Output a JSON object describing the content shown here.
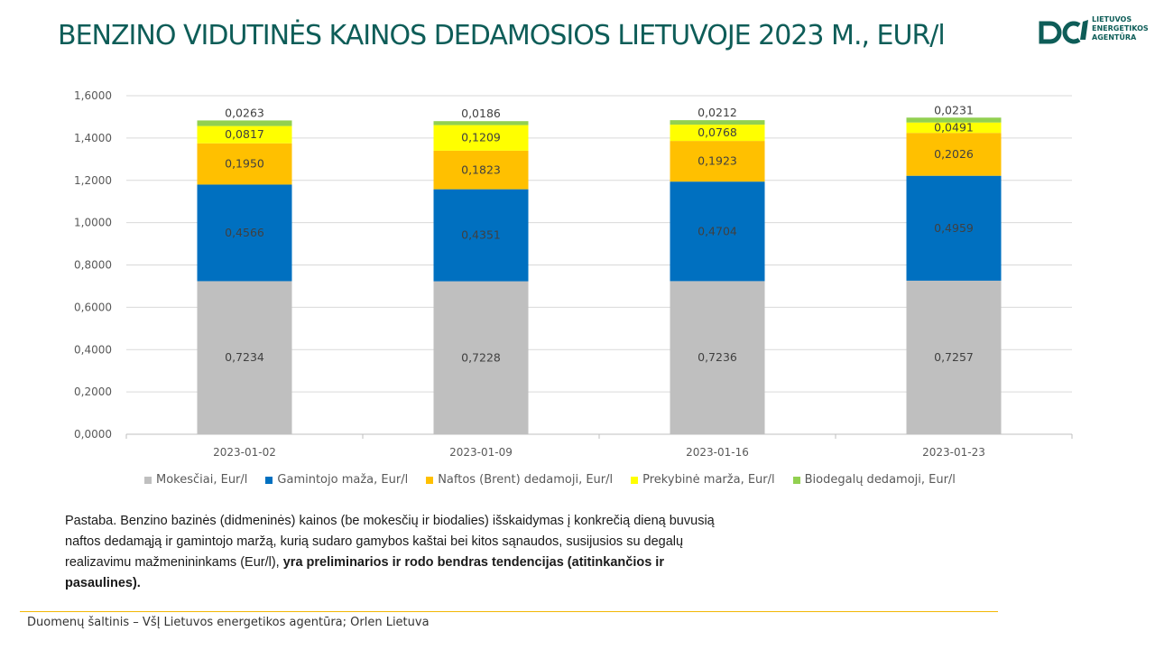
{
  "title": "BENZINO VIDUTINĖS KAINOS DEDAMOSIOS LIETUVOJE 2023 M., EUR/l",
  "logo": {
    "lines": [
      "LIETUVOS",
      "ENERGETIKOS",
      "AGENTŪRA"
    ],
    "color": "#0e5d58"
  },
  "chart_data": {
    "type": "bar",
    "stacked": true,
    "categories": [
      "2023-01-02",
      "2023-01-09",
      "2023-01-16",
      "2023-01-23"
    ],
    "series": [
      {
        "name": "Mokesčiai, Eur/l",
        "color": "#bfbfbf",
        "values": [
          0.7234,
          0.7228,
          0.7236,
          0.7257
        ],
        "labels": [
          "0,7234",
          "0,7228",
          "0,7236",
          "0,7257"
        ]
      },
      {
        "name": "Gamintojo maža, Eur/l",
        "color": "#0070c0",
        "values": [
          0.4566,
          0.4351,
          0.4704,
          0.4959
        ],
        "labels": [
          "0,4566",
          "0,4351",
          "0,4704",
          "0,4959"
        ]
      },
      {
        "name": "Naftos (Brent) dedamoji, Eur/l",
        "color": "#ffc000",
        "values": [
          0.195,
          0.1823,
          0.1923,
          0.2026
        ],
        "labels": [
          "0,1950",
          "0,1823",
          "0,1923",
          "0,2026"
        ]
      },
      {
        "name": "Prekybinė marža, Eur/l",
        "color": "#ffff00",
        "values": [
          0.0817,
          0.1209,
          0.0768,
          0.0491
        ],
        "labels": [
          "0,0817",
          "0,1209",
          "0,0768",
          "0,0491"
        ]
      },
      {
        "name": "Biodegalų dedamoji, Eur/l",
        "color": "#92d050",
        "values": [
          0.0263,
          0.0186,
          0.0212,
          0.0231
        ],
        "labels": [
          "0,0263",
          "0,0186",
          "0,0212",
          "0,0231"
        ]
      }
    ],
    "ylim": [
      0,
      1.6
    ],
    "yticks": [
      "0,0000",
      "0,2000",
      "0,4000",
      "0,6000",
      "0,8000",
      "1,0000",
      "1,2000",
      "1,4000",
      "1,6000"
    ],
    "grid": true,
    "legend_position": "bottom"
  },
  "note": {
    "text": "Pastaba. Benzino bazinės (didmeninės) kainos (be mokesčių ir biodalies) išskaidymas į konkrečią dieną buvusią naftos dedamąją ir gamintojo maržą, kurią sudaro gamybos kaštai bei kitos sąnaudos, susijusios su degalų realizavimu mažmenininkams (Eur/l), ",
    "bold": "yra preliminarios ir rodo bendras tendencijas (atitinkančios ir pasaulines)."
  },
  "source": "Duomenų šaltinis – VšĮ Lietuvos energetikos agentūra; Orlen Lietuva"
}
